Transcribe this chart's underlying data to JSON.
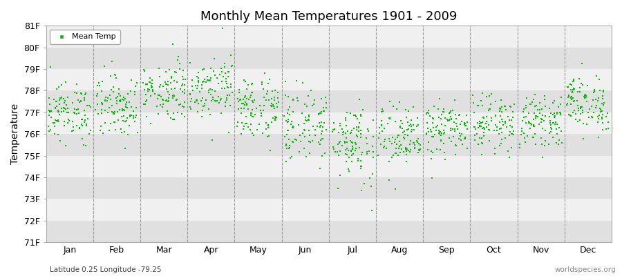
{
  "title": "Monthly Mean Temperatures 1901 - 2009",
  "ylabel": "Temperature",
  "xlabel_labels": [
    "Jan",
    "Feb",
    "Mar",
    "Apr",
    "May",
    "Jun",
    "Jul",
    "Aug",
    "Sep",
    "Oct",
    "Nov",
    "Dec"
  ],
  "footnote_left": "Latitude 0.25 Longitude -79.25",
  "footnote_right": "worldspecies.org",
  "ylim": [
    71,
    81
  ],
  "ytick_labels": [
    "71F",
    "72F",
    "73F",
    "74F",
    "75F",
    "76F",
    "77F",
    "78F",
    "79F",
    "80F",
    "81F"
  ],
  "ytick_values": [
    71,
    72,
    73,
    74,
    75,
    76,
    77,
    78,
    79,
    80,
    81
  ],
  "dot_color": "#00bb00",
  "dot_size": 3,
  "legend_label": "Mean Temp",
  "fig_bg_color": "#ffffff",
  "plot_bg_color": "#f0f0f0",
  "band_light": "#f0f0f0",
  "band_dark": "#e0e0e0",
  "n_years": 109,
  "monthly_means": [
    77.0,
    77.3,
    78.0,
    78.2,
    77.2,
    76.4,
    75.7,
    75.8,
    76.2,
    76.5,
    76.6,
    77.4
  ],
  "monthly_stds": [
    0.65,
    0.72,
    0.68,
    0.7,
    0.75,
    0.85,
    0.95,
    0.75,
    0.6,
    0.62,
    0.55,
    0.65
  ]
}
